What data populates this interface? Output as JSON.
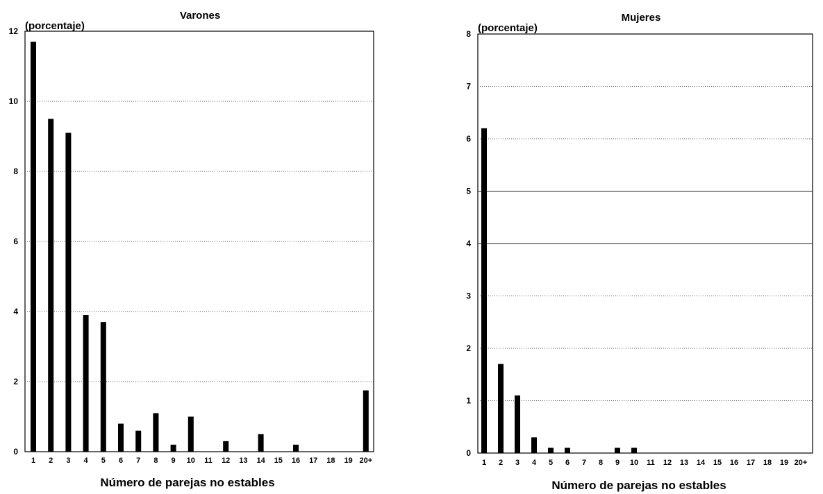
{
  "chart_data": [
    {
      "type": "bar",
      "title": "Varones",
      "ylabel": "(porcentaje)",
      "xlabel": "Número de parejas no estables",
      "categories": [
        "1",
        "2",
        "3",
        "4",
        "5",
        "6",
        "7",
        "8",
        "9",
        "10",
        "11",
        "12",
        "13",
        "14",
        "15",
        "16",
        "17",
        "18",
        "19",
        "20+"
      ],
      "values": [
        11.7,
        9.5,
        9.1,
        3.9,
        3.7,
        0.8,
        0.6,
        1.1,
        0.2,
        1.0,
        0,
        0.3,
        0,
        0.5,
        0,
        0.2,
        0,
        0,
        0,
        1.75
      ],
      "ylim": [
        0,
        12
      ],
      "yticks": [
        0,
        2,
        4,
        6,
        8,
        10,
        12
      ],
      "grid": true
    },
    {
      "type": "bar",
      "title": "Mujeres",
      "ylabel": "(porcentaje)",
      "xlabel": "Número de parejas no estables",
      "categories": [
        "1",
        "2",
        "3",
        "4",
        "5",
        "6",
        "7",
        "8",
        "9",
        "10",
        "11",
        "12",
        "13",
        "14",
        "15",
        "16",
        "17",
        "18",
        "19",
        "20+"
      ],
      "values": [
        6.2,
        1.7,
        1.1,
        0.3,
        0.1,
        0.1,
        0,
        0,
        0.1,
        0.1,
        0,
        0,
        0,
        0,
        0,
        0,
        0,
        0,
        0,
        0
      ],
      "ylim": [
        0,
        8
      ],
      "yticks": [
        0,
        1,
        2,
        3,
        4,
        5,
        6,
        7,
        8
      ],
      "grid": true
    }
  ]
}
